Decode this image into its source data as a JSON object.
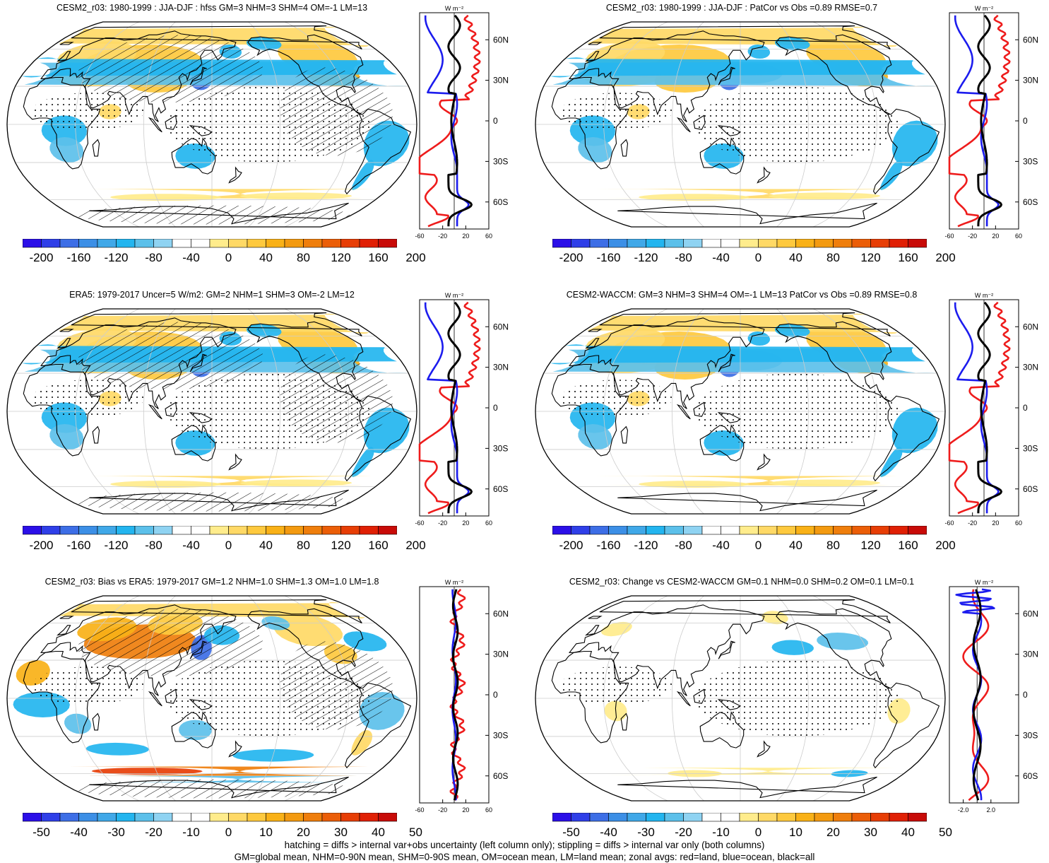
{
  "panels": [
    {
      "title": "CESM2_r03: 1980-1999 : JJA-DJF : hfss GM=3 NHM=3 SHM=4 OM=-1 LM=13",
      "hatching": true,
      "scheme": "full",
      "colorbar_labels": [
        "-200",
        "-160",
        "-120",
        "-80",
        "-40",
        "0",
        "40",
        "80",
        "120",
        "160",
        "200"
      ],
      "zonal_xticks": [
        "-60",
        "-20",
        "20",
        "60"
      ],
      "zonal_range": [
        -60,
        60
      ],
      "zonal_units": "W m⁻²",
      "profile_style": "full",
      "lat_labels": [
        "60N",
        "30N",
        "0",
        "30S",
        "60S"
      ]
    },
    {
      "title": "CESM2_r03: 1980-1999 : JJA-DJF : PatCor vs Obs =0.89 RMSE=0.7",
      "hatching": false,
      "scheme": "full",
      "colorbar_labels": [
        "-200",
        "-160",
        "-120",
        "-80",
        "-40",
        "0",
        "40",
        "80",
        "120",
        "160",
        "200"
      ],
      "zonal_xticks": [
        "-60",
        "-20",
        "20",
        "60"
      ],
      "zonal_range": [
        -60,
        60
      ],
      "zonal_units": "W m⁻²",
      "profile_style": "full",
      "lat_labels": [
        "60N",
        "30N",
        "0",
        "30S",
        "60S"
      ]
    },
    {
      "title": "ERA5: 1979-2017 Uncer=5 W/m2: GM=2 NHM=1 SHM=3 OM=-2 LM=12",
      "hatching": true,
      "scheme": "full",
      "colorbar_labels": [
        "-200",
        "-160",
        "-120",
        "-80",
        "-40",
        "0",
        "40",
        "80",
        "120",
        "160",
        "200"
      ],
      "zonal_xticks": [
        "-60",
        "-20",
        "20",
        "60"
      ],
      "zonal_range": [
        -60,
        60
      ],
      "zonal_units": "W m⁻²",
      "profile_style": "full",
      "lat_labels": [
        "60N",
        "30N",
        "0",
        "30S",
        "60S"
      ]
    },
    {
      "title": "CESM2-WACCM: GM=3 NHM=3 SHM=4 OM=-1 LM=13 PatCor vs Obs =0.89 RMSE=0.8",
      "hatching": false,
      "scheme": "full",
      "colorbar_labels": [
        "-200",
        "-160",
        "-120",
        "-80",
        "-40",
        "0",
        "40",
        "80",
        "120",
        "160",
        "200"
      ],
      "zonal_xticks": [
        "-60",
        "-20",
        "20",
        "60"
      ],
      "zonal_range": [
        -60,
        60
      ],
      "zonal_units": "W m⁻²",
      "profile_style": "full",
      "lat_labels": [
        "60N",
        "30N",
        "0",
        "30S",
        "60S"
      ]
    },
    {
      "title": "CESM2_r03: Bias vs ERA5: 1979-2017 GM=1.2 NHM=1.0 SHM=1.3 OM=1.0 LM=1.8",
      "hatching": true,
      "scheme": "bias",
      "colorbar_labels": [
        "-50",
        "-40",
        "-30",
        "-20",
        "-10",
        "0",
        "10",
        "20",
        "30",
        "40",
        "50"
      ],
      "zonal_xticks": [
        "-60",
        "-20",
        "20",
        "60"
      ],
      "zonal_range": [
        -60,
        60
      ],
      "zonal_units": "W m⁻²",
      "profile_style": "bias",
      "lat_labels": [
        "60N",
        "30N",
        "0",
        "30S",
        "60S"
      ]
    },
    {
      "title": "CESM2_r03: Change vs CESM2-WACCM GM=0.1 NHM=0.0 SHM=0.2 OM=0.1 LM=0.1",
      "hatching": false,
      "scheme": "change",
      "colorbar_labels": [
        "-50",
        "-40",
        "-30",
        "-20",
        "-10",
        "0",
        "10",
        "20",
        "30",
        "40",
        "50"
      ],
      "zonal_xticks": [
        "-2.0",
        "2.0"
      ],
      "zonal_range": [
        -4,
        6
      ],
      "zonal_units": "W m⁻²",
      "profile_style": "change",
      "lat_labels": [
        "60N",
        "30N",
        "0",
        "30S",
        "60S"
      ]
    }
  ],
  "colorbar_colors": [
    "#2b0fe8",
    "#2f3fe8",
    "#3d6ee6",
    "#3c8fe6",
    "#40a8e8",
    "#23b5ef",
    "#5cc0ea",
    "#8fd3f2",
    "#ffffff",
    "#ffffff",
    "#ffec8c",
    "#ffd966",
    "#fec93e",
    "#f9b117",
    "#f39a10",
    "#ef7e0c",
    "#eb5e08",
    "#e73e06",
    "#e02005",
    "#c80b08"
  ],
  "legend_colors": {
    "land": "#ee1c1c",
    "ocean": "#1c1cee",
    "all": "#000000"
  },
  "footer": {
    "line1": "hatching = diffs > internal var+obs uncertainty (left column only); stippling = diffs > internal var only (both columns)",
    "line2": "GM=global mean, NHM=0-90N mean, SHM=0-90S mean, OM=ocean mean, LM=land mean; zonal avgs: red=land, blue=ocean, black=all"
  }
}
